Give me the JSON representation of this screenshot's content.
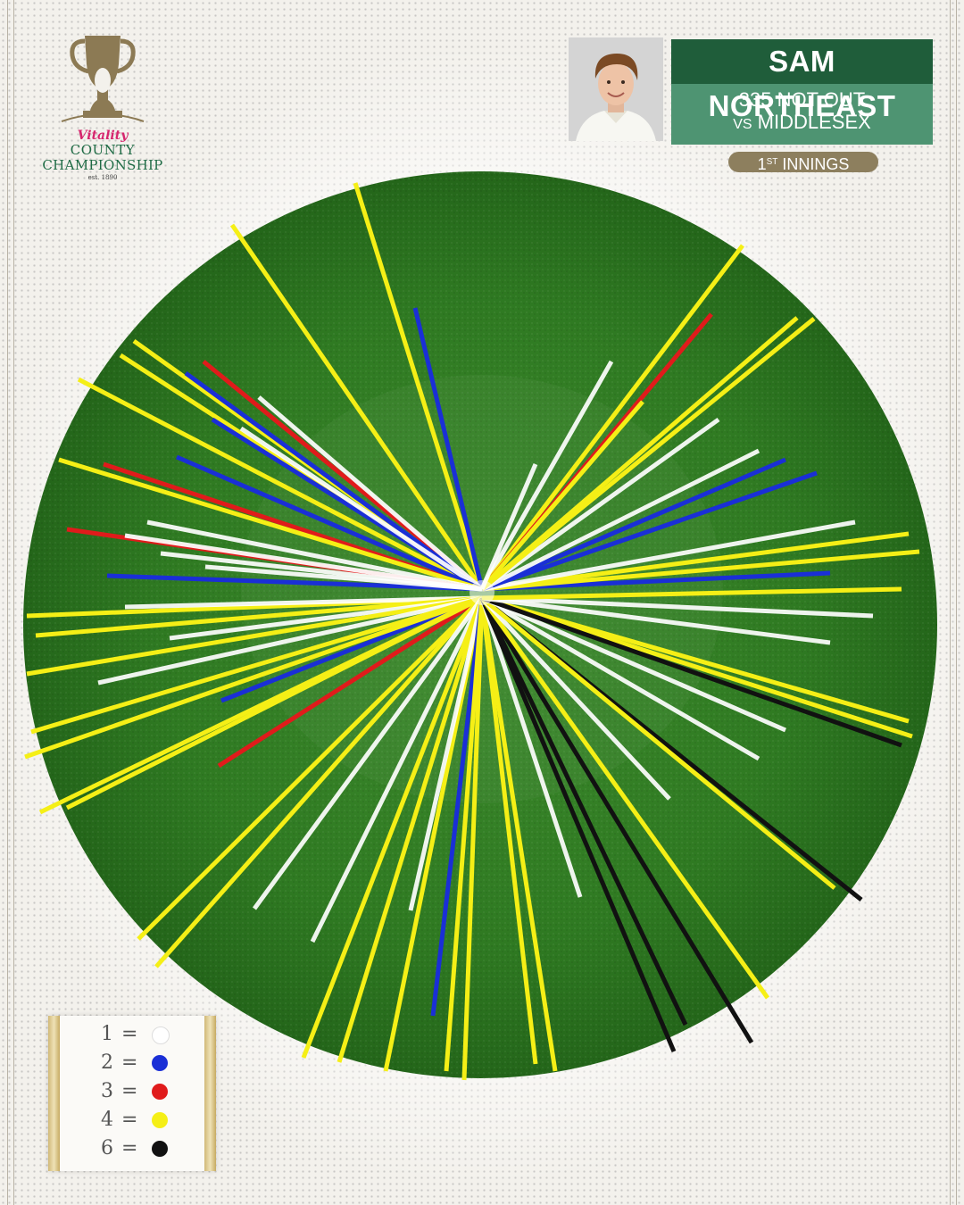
{
  "logo": {
    "sponsor": "Vitality",
    "line1": "COUNTY",
    "line2": "CHAMPIONSHIP",
    "established": "est. 1890"
  },
  "player": {
    "name": "SAM NORTHEAST",
    "score": "335 NOT OUT",
    "vs_prefix": "VS",
    "opponent": "MIDDLESEX",
    "innings_ordinal": "1",
    "innings_suffix": "ST",
    "innings_label": "INNINGS"
  },
  "colors": {
    "field": "#2f7a22",
    "one": "#ffffff",
    "two": "#1a2fd6",
    "three": "#e01b1b",
    "four": "#f5ef16",
    "six": "#111111"
  },
  "legend": [
    {
      "runs": "1",
      "color": "#ffffff"
    },
    {
      "runs": "2",
      "color": "#1a2fd6"
    },
    {
      "runs": "3",
      "color": "#e01b1b"
    },
    {
      "runs": "4",
      "color": "#f5ef16"
    },
    {
      "runs": "6",
      "color": "#111111"
    }
  ]
}
